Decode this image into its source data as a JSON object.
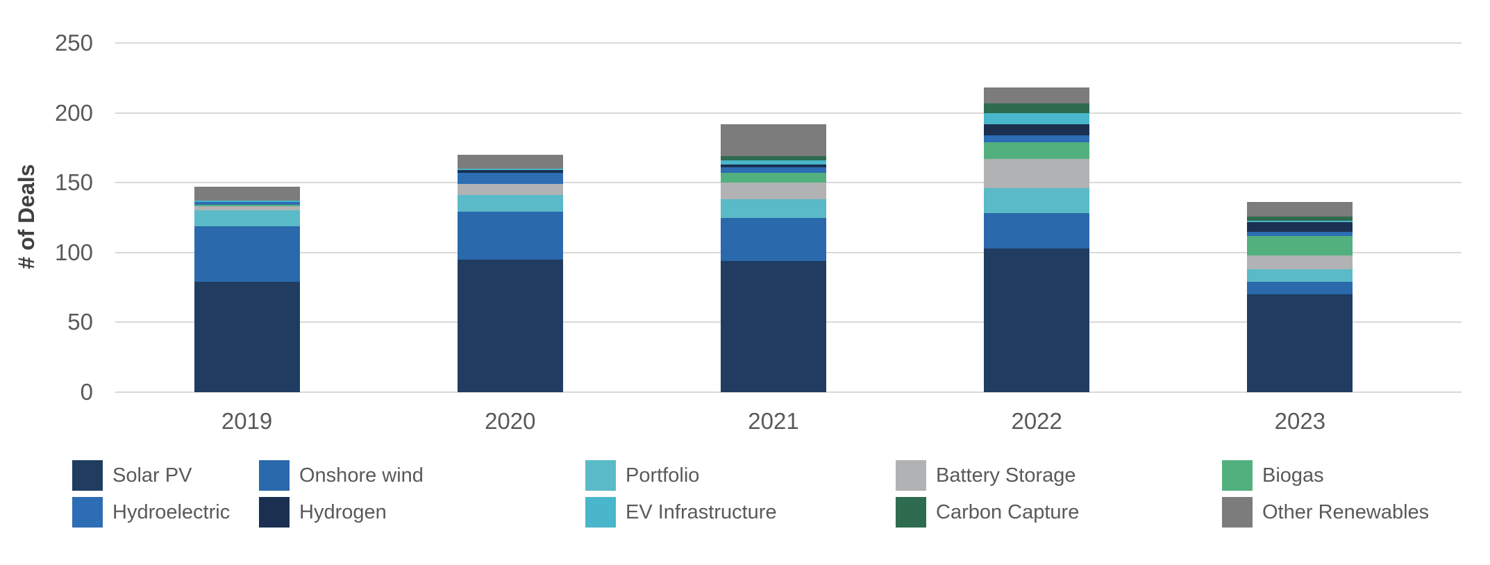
{
  "chart_data": {
    "type": "bar",
    "stacked": true,
    "title": "",
    "xlabel": "",
    "ylabel": "# of Deals",
    "categories": [
      "2019",
      "2020",
      "2021",
      "2022",
      "2023"
    ],
    "series": [
      {
        "name": "Solar PV",
        "color": "#203C61",
        "values": [
          79,
          95,
          94,
          103,
          70
        ]
      },
      {
        "name": "Onshore wind",
        "color": "#2A69AB",
        "values": [
          40,
          34,
          31,
          25,
          9
        ]
      },
      {
        "name": "Portfolio",
        "color": "#5ABAC7",
        "values": [
          11,
          12,
          13,
          18,
          9
        ]
      },
      {
        "name": "Battery Storage",
        "color": "#B0B2B3",
        "values": [
          3,
          8,
          12,
          21,
          10
        ]
      },
      {
        "name": "Biogas",
        "color": "#52B07F",
        "values": [
          1,
          0,
          7,
          12,
          14
        ]
      },
      {
        "name": "Hydroelectric",
        "color": "#2D6DB3",
        "values": [
          2,
          8,
          4,
          5,
          3
        ]
      },
      {
        "name": "Hydrogen",
        "color": "#1B3050",
        "values": [
          0,
          2,
          2,
          8,
          7
        ]
      },
      {
        "name": "EV Infrastructure",
        "color": "#49B6CB",
        "values": [
          1,
          1,
          3,
          8,
          1
        ]
      },
      {
        "name": "Carbon Capture",
        "color": "#2E6B4F",
        "values": [
          0,
          0,
          3,
          7,
          3
        ]
      },
      {
        "name": "Other Renewables",
        "color": "#7C7C7C",
        "values": [
          10,
          10,
          23,
          11,
          10
        ]
      }
    ],
    "totals": [
      147,
      170,
      192,
      218,
      136
    ],
    "ylim": [
      0,
      250
    ],
    "yticks": [
      0,
      50,
      100,
      150,
      200,
      250
    ],
    "grid": true,
    "grid_color": "#D9D9D9",
    "tick_text_color": "#595959",
    "axis_title_color": "#404040",
    "legend_position": "bottom",
    "legend_rows": [
      [
        "Solar PV",
        "Onshore wind",
        "Portfolio",
        "Battery Storage",
        "Biogas"
      ],
      [
        "Hydroelectric",
        "Hydrogen",
        "EV Infrastructure",
        "Carbon Capture",
        "Other Renewables"
      ]
    ]
  }
}
